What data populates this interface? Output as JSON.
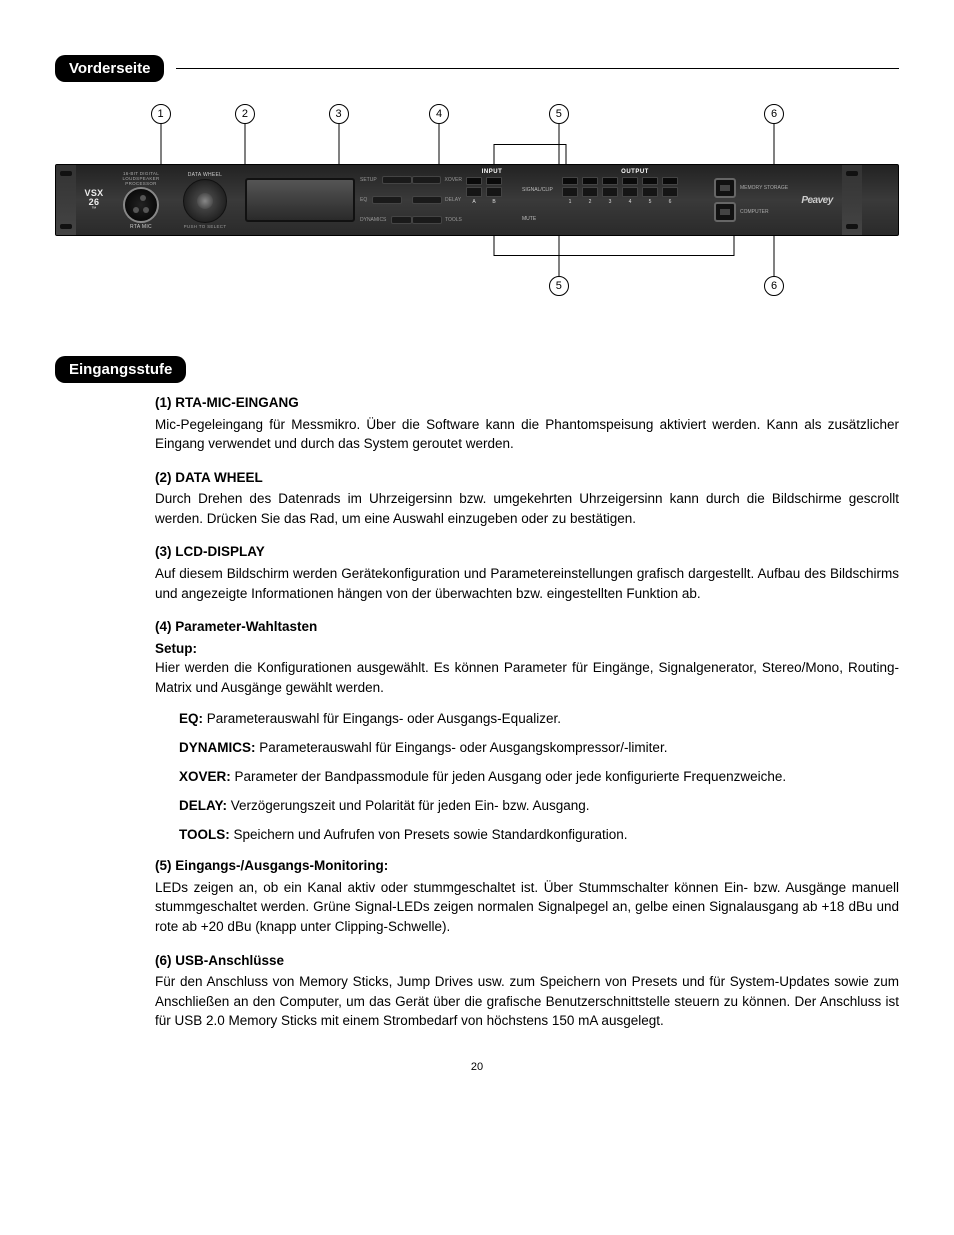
{
  "page_number": "20",
  "sections": {
    "front_panel_title": "Vorderseite",
    "input_stage_title": "Eingangsstufe"
  },
  "device": {
    "model_line1": "VSX",
    "model_line2": "26",
    "model_tm": "™",
    "brand": "Peavey",
    "xlr_sub": "RTA MIC",
    "xlr_top": "16-BIT DIGITAL LOUDSPEAKER PROCESSOR",
    "wheel_label": "DATA WHEEL",
    "wheel_sub": "PUSH TO SELECT",
    "btns": {
      "setup": "SETUP",
      "eq": "EQ",
      "dynamics": "DYNAMICS",
      "xover": "XOVER",
      "delay": "DELAY",
      "tools": "TOOLS"
    },
    "input_title": "INPUT",
    "output_title": "OUTPUT",
    "row_signal": "SIGNAL/CLIP",
    "row_mute": "MUTE",
    "in_ch": [
      "A",
      "B"
    ],
    "out_ch": [
      "1",
      "2",
      "3",
      "4",
      "5",
      "6"
    ],
    "usb_top": "MEMORY STORAGE",
    "usb_bottom": "COMPUTER"
  },
  "callouts_top": [
    {
      "n": "1",
      "x": 12.5
    },
    {
      "n": "2",
      "x": 22.5
    },
    {
      "n": "3",
      "x": 33.6
    },
    {
      "n": "4",
      "x": 45.5
    },
    {
      "n": "5",
      "x": 59.7,
      "span_from": 52.0,
      "span_to": 60.5
    },
    {
      "n": "6",
      "x": 85.2
    }
  ],
  "callouts_bottom": [
    {
      "n": "5",
      "x": 59.7,
      "span_from": 52.0,
      "span_to": 80.5
    },
    {
      "n": "6",
      "x": 85.2
    }
  ],
  "items": [
    {
      "num": "(1)",
      "title": "RTA-MIC-EINGANG",
      "body": "Mic-Pegeleingang für Messmikro. Über die Software kann die Phantomspeisung aktiviert werden. Kann als zusätzlicher Eingang verwendet und durch das System geroutet werden."
    },
    {
      "num": "(2)",
      "title": "DATA WHEEL",
      "body": "Durch Drehen des Datenrads im Uhrzeigersinn bzw. umgekehrten Uhrzeigersinn kann durch die Bildschirme gescrollt werden. Drücken Sie das Rad, um eine Auswahl einzugeben oder zu bestätigen."
    },
    {
      "num": "(3)",
      "title": "LCD-DISPLAY",
      "body": "Auf diesem Bildschirm werden Gerätekonfiguration und Parametereinstellungen grafisch dargestellt. Aufbau des Bildschirms und angezeigte Informationen hängen von der überwachten bzw. eingestellten Funktion ab."
    },
    {
      "num": "(4)",
      "title": "Parameter-Wahltasten",
      "subtitle": "Setup:",
      "body": "Hier werden die Konfigurationen ausgewählt. Es können Parameter für Eingänge, Signalgenerator, Stereo/Mono, Routing-Matrix und Ausgänge gewählt werden.",
      "subs": [
        {
          "k": "EQ:",
          "v": "Parameterauswahl für Eingangs- oder Ausgangs-Equalizer."
        },
        {
          "k": "DYNAMICS:",
          "v": "Parameterauswahl für Eingangs- oder Ausgangskompressor/-limiter."
        },
        {
          "k": "XOVER:",
          "v": "Parameter der Bandpassmodule für jeden Ausgang oder jede konfigurierte Frequenzweiche."
        },
        {
          "k": "DELAY:",
          "v": "Verzögerungszeit und Polarität für jeden Ein- bzw. Ausgang."
        },
        {
          "k": "TOOLS:",
          "v": "Speichern und Aufrufen von Presets sowie Standardkonfiguration."
        }
      ]
    },
    {
      "num": "(5)",
      "title": "Eingangs-/Ausgangs-Monitoring:",
      "body": "LEDs zeigen an, ob ein Kanal aktiv oder stummgeschaltet ist. Über Stummschalter können Ein- bzw. Ausgänge manuell stummgeschaltet werden. Grüne Signal-LEDs zeigen normalen Signalpegel an, gelbe einen Signalausgang ab +18 dBu und rote ab +20 dBu (knapp unter Clipping-Schwelle)."
    },
    {
      "num": "(6)",
      "title": "USB-Anschlüsse",
      "body": "Für den Anschluss von Memory Sticks, Jump Drives usw. zum Speichern von Presets und für System-Updates sowie zum Anschließen an den Computer, um das Gerät über die grafische Benutzerschnittstelle steuern zu können. Der Anschluss ist für USB 2.0 Memory Sticks mit einem Strombedarf von höchstens 150 mA ausgelegt."
    }
  ]
}
